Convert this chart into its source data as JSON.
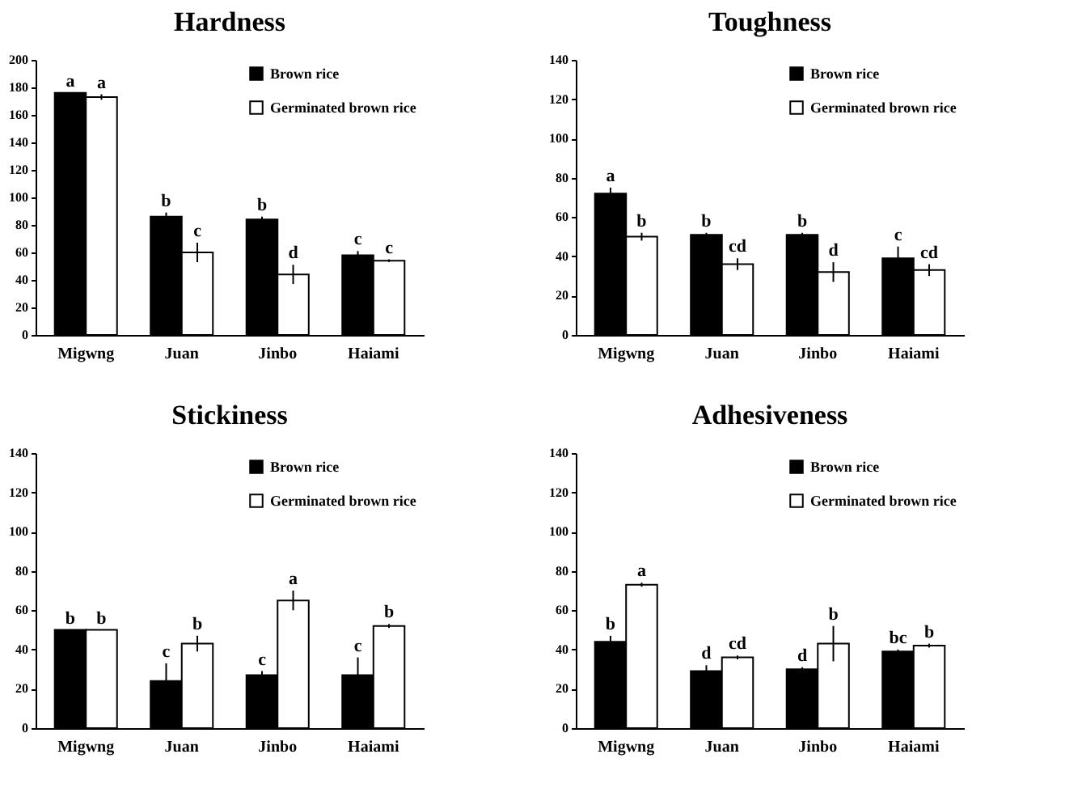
{
  "chart_data": [
    {
      "type": "bar",
      "title": "Hardness",
      "categories": [
        "Migwng",
        "Juan",
        "Jinbo",
        "Haiami"
      ],
      "ylim": [
        0,
        200
      ],
      "yticks": [
        0,
        20,
        40,
        60,
        80,
        100,
        120,
        140,
        160,
        180,
        200
      ],
      "legend": "top right",
      "series": [
        {
          "name": "Brown rice",
          "color": "#000000",
          "values": [
            176,
            86,
            84,
            58
          ],
          "errors": [
            0,
            3,
            2,
            3
          ],
          "value_labels": [
            "a",
            "b",
            "b",
            "c"
          ]
        },
        {
          "name": "Germinated brown rice",
          "color": "#ffffff",
          "values": [
            173,
            60,
            44,
            54
          ],
          "errors": [
            2,
            7,
            7,
            1
          ],
          "value_labels": [
            "a",
            "c",
            "d",
            "c"
          ]
        }
      ]
    },
    {
      "type": "bar",
      "title": "Toughness",
      "categories": [
        "Migwng",
        "Juan",
        "Jinbo",
        "Haiami"
      ],
      "ylim": [
        0,
        140
      ],
      "yticks": [
        0,
        20,
        40,
        60,
        80,
        100,
        120,
        140
      ],
      "legend": "top right",
      "series": [
        {
          "name": "Brown rice",
          "color": "#000000",
          "values": [
            72,
            51,
            51,
            39
          ],
          "errors": [
            3,
            1,
            1,
            6
          ],
          "value_labels": [
            "a",
            "b",
            "b",
            "c"
          ]
        },
        {
          "name": "Germinated brown rice",
          "color": "#ffffff",
          "values": [
            50,
            36,
            32,
            33
          ],
          "errors": [
            2,
            3,
            5,
            3
          ],
          "value_labels": [
            "b",
            "cd",
            "d",
            "cd"
          ]
        }
      ]
    },
    {
      "type": "bar",
      "title": "Stickiness",
      "categories": [
        "Migwng",
        "Juan",
        "Jinbo",
        "Haiami"
      ],
      "ylim": [
        0,
        140
      ],
      "yticks": [
        0,
        20,
        40,
        60,
        80,
        100,
        120,
        140
      ],
      "legend": "top right",
      "series": [
        {
          "name": "Brown rice",
          "color": "#000000",
          "values": [
            50,
            24,
            27,
            27
          ],
          "errors": [
            0,
            9,
            2,
            9
          ],
          "value_labels": [
            "b",
            "c",
            "c",
            "c"
          ]
        },
        {
          "name": "Germinated brown rice",
          "color": "#ffffff",
          "values": [
            50,
            43,
            65,
            52
          ],
          "errors": [
            0,
            4,
            5,
            1
          ],
          "value_labels": [
            "b",
            "b",
            "a",
            "b"
          ]
        }
      ]
    },
    {
      "type": "bar",
      "title": "Adhesiveness",
      "categories": [
        "Migwng",
        "Juan",
        "Jinbo",
        "Haiami"
      ],
      "ylim": [
        0,
        140
      ],
      "yticks": [
        0,
        20,
        40,
        60,
        80,
        100,
        120,
        140
      ],
      "legend": "top right",
      "series": [
        {
          "name": "Brown rice",
          "color": "#000000",
          "values": [
            44,
            29,
            30,
            39
          ],
          "errors": [
            3,
            3,
            1,
            1
          ],
          "value_labels": [
            "b",
            "d",
            "d",
            "bc"
          ]
        },
        {
          "name": "Germinated brown rice",
          "color": "#ffffff",
          "values": [
            73,
            36,
            43,
            42
          ],
          "errors": [
            1,
            1,
            9,
            1
          ],
          "value_labels": [
            "a",
            "cd",
            "b",
            "b"
          ]
        }
      ]
    }
  ]
}
